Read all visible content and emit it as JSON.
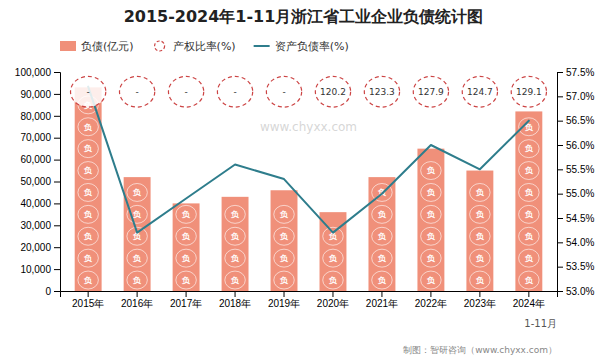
{
  "chart_data": {
    "type": "bar",
    "title": "2015-2024年1-11月浙江省工业企业负债统计图",
    "categories": [
      "2015年",
      "2016年",
      "2017年",
      "2018年",
      "2019年",
      "2020年",
      "2021年",
      "2022年",
      "2023年",
      "2024年"
    ],
    "series": [
      {
        "name": "负债(亿元)",
        "type": "bar",
        "color": "#F0907A",
        "marker": "负",
        "values": [
          93000,
          52000,
          40000,
          43000,
          46000,
          36000,
          52000,
          65000,
          55000,
          82000
        ]
      },
      {
        "name": "产权比率(%)",
        "type": "label",
        "color": "#CC4444",
        "line_style": "dashed",
        "data_labels": true,
        "values": [
          null,
          null,
          null,
          null,
          null,
          120.2,
          123.3,
          127.9,
          124.7,
          129.1
        ],
        "value_labels": [
          "-",
          "-",
          "-",
          "-",
          "-",
          "120.2",
          "123.3",
          "127.9",
          "124.7",
          "129.1"
        ]
      },
      {
        "name": "资产负债率(%)",
        "type": "line",
        "axis": "y2",
        "color": "#2E7D8C",
        "values": [
          57.2,
          54.2,
          54.9,
          55.6,
          55.3,
          54.2,
          55.0,
          56.0,
          55.5,
          56.5
        ]
      }
    ],
    "ylim": [
      0,
      100000
    ],
    "yticks": [
      0,
      {
        "value": 10000,
        "label": "10,000"
      },
      {
        "value": 20000,
        "label": "20,000"
      },
      {
        "value": 30000,
        "label": "30,000"
      },
      {
        "value": 40000,
        "label": "40,000"
      },
      {
        "value": 50000,
        "label": "50,000"
      },
      {
        "value": 60000,
        "label": "60,000"
      },
      {
        "value": 70000,
        "label": "70,000"
      },
      {
        "value": 80000,
        "label": "80,000"
      },
      {
        "value": 90000,
        "label": "90,000"
      },
      {
        "value": 100000,
        "label": "100,000"
      }
    ],
    "y2lim": [
      53.0,
      57.5
    ],
    "y2ticks": [
      {
        "value": 53.0,
        "label": "53.0%"
      },
      {
        "value": 53.5,
        "label": "53.5%"
      },
      {
        "value": 54.0,
        "label": "54.0%"
      },
      {
        "value": 54.5,
        "label": "54.5%"
      },
      {
        "value": 55.0,
        "label": "55.0%"
      },
      {
        "value": 55.5,
        "label": "55.5%"
      },
      {
        "value": 56.0,
        "label": "56.0%"
      },
      {
        "value": 56.5,
        "label": "56.5%"
      },
      {
        "value": 57.0,
        "label": "57.0%"
      },
      {
        "value": 57.5,
        "label": "57.5%"
      }
    ],
    "annotations": [
      "1-11月",
      "制图：智研咨询（www.chyxx.com）",
      "www.chyxx.com"
    ],
    "legend": "top-left",
    "grid": false
  }
}
